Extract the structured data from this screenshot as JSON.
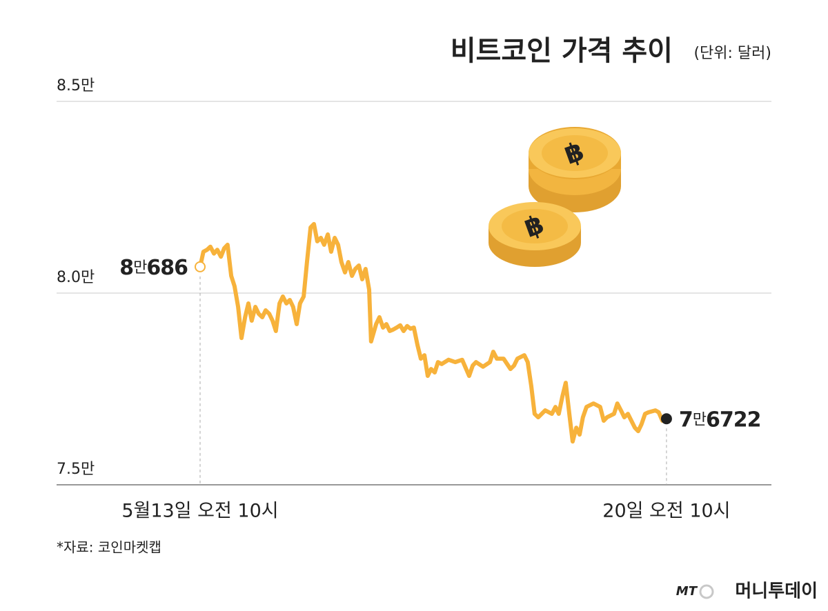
{
  "chart_data": {
    "type": "line",
    "title": "비트코인 가격 추이",
    "subtitle": "(단위: 달러)",
    "source": "*자료: 코인마켓캡",
    "watermark": "머니투데이",
    "watermark_logo": "MT",
    "color": "#f7b23b",
    "grid": true,
    "xlim": [
      -51.7,
      205.8
    ],
    "ylim": [
      75000,
      85000
    ],
    "xticks": [
      {
        "value": 0,
        "label": "5월13일 오전 10시"
      },
      {
        "value": 168,
        "label": "20일 오전 10시"
      }
    ],
    "yticks": [
      {
        "value": 75000,
        "label": "7.5만"
      },
      {
        "value": 80000,
        "label": "8.0만"
      },
      {
        "value": 85000,
        "label": "8.5만"
      }
    ],
    "x": [
      0,
      1.2,
      2.5,
      3.7,
      5.0,
      6.2,
      7.5,
      8.7,
      9.9,
      11.2,
      12.4,
      13.7,
      14.9,
      16.2,
      17.4,
      18.6,
      19.9,
      21.1,
      22.4,
      23.6,
      24.9,
      26.1,
      27.3,
      28.6,
      29.8,
      31.1,
      32.3,
      33.5,
      34.8,
      36.0,
      37.3,
      38.5,
      39.8,
      41.0,
      42.2,
      43.5,
      44.7,
      46.0,
      47.2,
      48.5,
      49.7,
      50.9,
      52.2,
      53.4,
      54.7,
      55.9,
      57.2,
      58.4,
      59.6,
      60.9,
      61.6,
      63.4,
      64.6,
      65.9,
      67.1,
      68.3,
      69.6,
      70.8,
      72.1,
      73.3,
      74.6,
      75.8,
      77.0,
      78.3,
      79.5,
      80.8,
      82.0,
      83.2,
      84.5,
      85.7,
      87.0,
      89.5,
      91.9,
      94.4,
      96.9,
      98.2,
      99.4,
      101.9,
      104.4,
      105.6,
      106.9,
      109.3,
      111.8,
      113.1,
      114.3,
      116.8,
      118.0,
      119.3,
      120.5,
      121.8,
      124.3,
      126.7,
      128.0,
      129.2,
      130.5,
      131.7,
      133.0,
      134.2,
      135.5,
      136.7,
      137.9,
      139.2,
      141.7,
      144.1,
      145.4,
      146.6,
      149.1,
      150.3,
      151.6,
      152.8,
      154.1,
      156.6,
      157.8,
      159.0,
      160.3,
      161.5,
      164.0,
      165.2,
      166.5,
      168
    ],
    "values": [
      80686,
      81080,
      81130,
      81210,
      81030,
      81130,
      80950,
      81170,
      81260,
      80450,
      80180,
      79640,
      78830,
      79370,
      79730,
      79280,
      79640,
      79460,
      79370,
      79550,
      79460,
      79280,
      79010,
      79730,
      79910,
      79730,
      79820,
      79640,
      79190,
      79730,
      79910,
      80810,
      81710,
      81800,
      81350,
      81440,
      81260,
      81530,
      81080,
      81440,
      81260,
      80810,
      80540,
      80810,
      80450,
      80630,
      80720,
      80360,
      80630,
      80090,
      78740,
      79190,
      79370,
      79100,
      79190,
      79010,
      79050,
      79100,
      79160,
      79010,
      79140,
      79070,
      79100,
      78650,
      78290,
      78380,
      77840,
      78020,
      77930,
      78200,
      78150,
      78260,
      78200,
      78260,
      77840,
      78110,
      78200,
      78080,
      78200,
      78470,
      78290,
      78290,
      78020,
      78110,
      78290,
      78380,
      78200,
      77570,
      76850,
      76760,
      76940,
      76850,
      77030,
      76850,
      77300,
      77660,
      76850,
      76130,
      76490,
      76310,
      76760,
      77030,
      77120,
      77030,
      76670,
      76760,
      76850,
      77120,
      76940,
      76760,
      76850,
      76490,
      76400,
      76580,
      76850,
      76890,
      76940,
      76890,
      76670,
      76722
    ],
    "value_labels": [
      "8만686",
      null,
      null,
      null,
      null,
      null,
      null,
      null,
      null,
      null,
      null,
      null,
      null,
      null,
      null,
      null,
      null,
      null,
      null,
      null,
      null,
      null,
      null,
      null,
      null,
      null,
      null,
      null,
      null,
      null,
      null,
      null,
      null,
      null,
      null,
      null,
      null,
      null,
      null,
      null,
      null,
      null,
      null,
      null,
      null,
      null,
      null,
      null,
      null,
      null,
      null,
      null,
      null,
      null,
      null,
      null,
      null,
      null,
      null,
      null,
      null,
      null,
      null,
      null,
      null,
      null,
      null,
      null,
      null,
      null,
      null,
      null,
      null,
      null,
      null,
      null,
      null,
      null,
      null,
      null,
      null,
      null,
      null,
      null,
      null,
      null,
      null,
      null,
      null,
      null,
      null,
      null,
      null,
      null,
      null,
      null,
      null,
      null,
      null,
      null,
      null,
      null,
      null,
      null,
      null,
      null,
      null,
      null,
      null,
      null,
      null,
      null,
      null,
      null,
      null,
      null,
      null,
      null,
      null,
      "7만6722"
    ]
  }
}
